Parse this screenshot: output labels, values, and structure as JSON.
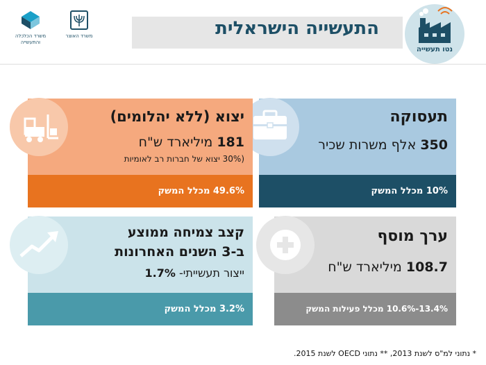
{
  "header": {
    "title": "התעשייה הישראלית",
    "badge_label": "נטו תעשייה",
    "logo_economy": "משרד הכלכלה והתעשייה",
    "logo_treasury": "משרד האוצר"
  },
  "cards": {
    "employment": {
      "title": "תעסוקה",
      "value": "350",
      "text": "אלף משרות שכיר",
      "footer": "10% מכלל המשק",
      "icon": "briefcase-icon",
      "colors": {
        "top": "#a9c9e0",
        "bottom": "#1d4f66"
      }
    },
    "exports": {
      "title": "יצוא (ללא יהלומים)",
      "value": "181",
      "text": "מיליארד ש\"ח",
      "subtext": "(30% יצוא של חברות רב לאומיות",
      "footer": "49.6% מכלל המשק",
      "icon": "forklift-icon",
      "colors": {
        "top": "#f5a97e",
        "bottom": "#e8731f"
      }
    },
    "value_added": {
      "title": "ערך מוסף",
      "value": "108.7",
      "text": "מיליארד ש\"ח",
      "footer": "13.4%-10.6% מכלל פעילות המשק",
      "icon": "plus-icon",
      "colors": {
        "top": "#d9d9d9",
        "bottom": "#8c8c8c"
      }
    },
    "growth": {
      "title_line1": "קצב צמיחה ממוצע",
      "title_line2": "ב-3 השנים האחרונות",
      "text": "ייצור תעשייתי-",
      "value": "1.7%",
      "footer": "3.2% מכלל המשק",
      "icon": "trend-up-icon",
      "colors": {
        "top": "#cbe3ea",
        "bottom": "#4a9aaa"
      }
    }
  },
  "footnote": "* נתוני למ\"ס לשנת 2013, ** נתוני OECD לשנת 2015."
}
